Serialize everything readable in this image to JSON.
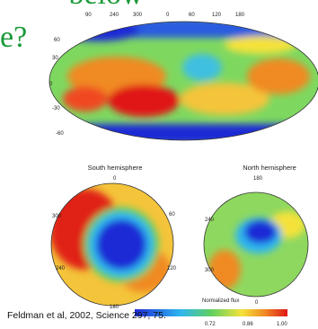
{
  "slide": {
    "heading_top_fragment": "below",
    "heading_fragment": "e?",
    "citation": "Feldman et al, 2002, Science 297, 75."
  },
  "figure": {
    "top_map": {
      "lon_labels": [
        "90",
        "240",
        "300",
        "0",
        "60",
        "120",
        "180"
      ],
      "lat_labels": [
        "60",
        "30",
        "0",
        "-30",
        "-60"
      ]
    },
    "south": {
      "title": "South hemisphere",
      "labels": [
        "0",
        "300",
        "60",
        "240",
        "120",
        "180"
      ]
    },
    "north": {
      "title": "North hemisphere",
      "labels": [
        "180",
        "240",
        "300",
        "0"
      ]
    },
    "colorbar": {
      "title": "Normalized flux",
      "labels": [
        "0.72",
        "0.86",
        "1.00"
      ]
    }
  }
}
